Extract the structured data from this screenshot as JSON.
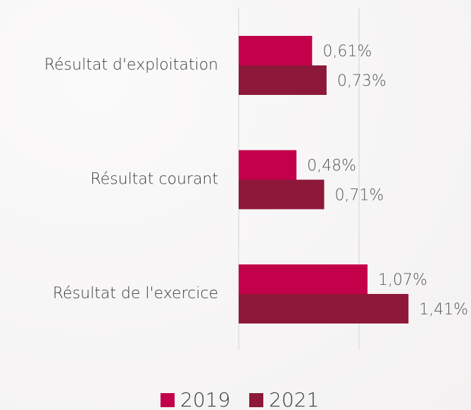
{
  "chart_data": {
    "type": "barh",
    "categories": [
      "Résultat d'exploitation",
      "Résultat courant",
      "Résultat de l'exercice"
    ],
    "series": [
      {
        "name": "2019",
        "color": "#c3004a",
        "values": [
          0.61,
          0.48,
          1.07
        ],
        "value_labels": [
          "0,61%",
          "0,48%",
          "1,07%"
        ]
      },
      {
        "name": "2021",
        "color": "#8e1839",
        "values": [
          0.73,
          0.71,
          1.41
        ],
        "value_labels": [
          "0,73%",
          "0,71%",
          "1,41%"
        ]
      }
    ],
    "xlim": [
      0,
      1.9
    ],
    "xticks": [
      0,
      1
    ],
    "grid": true,
    "legend": "bottom"
  }
}
